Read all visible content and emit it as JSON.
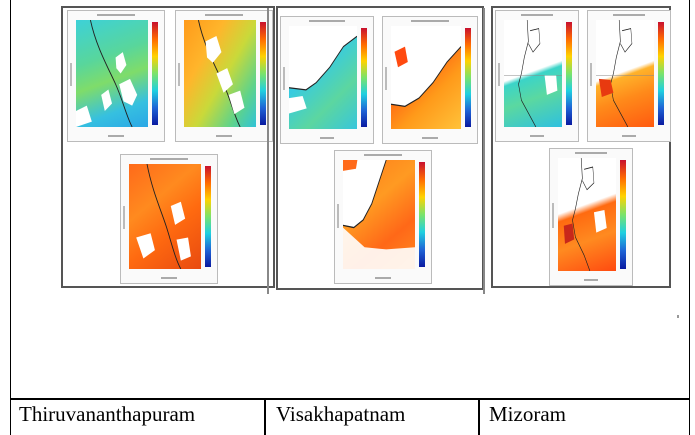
{
  "columns": [
    {
      "label": "Thiruvananthapuram",
      "plots": [
        "map-plot-1",
        "map-plot-2",
        "map-plot-3"
      ]
    },
    {
      "label": "Visakhapatnam",
      "plots": [
        "map-plot-1",
        "map-plot-2",
        "map-plot-3"
      ]
    },
    {
      "label": "Mizoram",
      "plots": [
        "map-plot-1",
        "map-plot-2",
        "map-plot-3"
      ]
    }
  ],
  "colors": {
    "border": "#000000",
    "panel_border": "#555555",
    "colorbar_top": "#c8102e",
    "colorbar_bottom": "#0a1aa0"
  }
}
